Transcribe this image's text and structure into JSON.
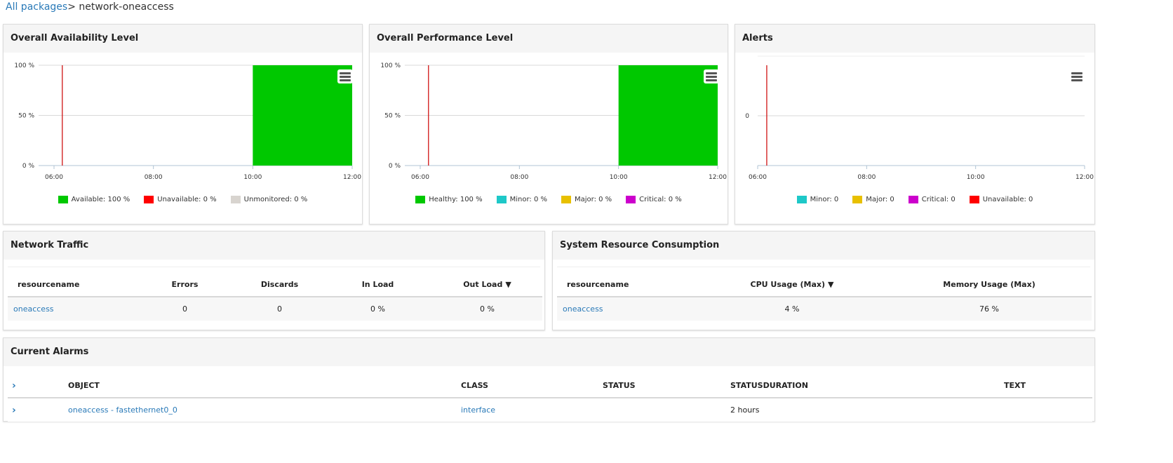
{
  "breadcrumb": {
    "root": "All packages",
    "separator": ">",
    "current": "network-oneaccess"
  },
  "panels": {
    "availability": {
      "title": "Overall Availability Level",
      "legend": [
        {
          "label": "Available: 100 %",
          "color": "#00c800"
        },
        {
          "label": "Unavailable: 0 %",
          "color": "#ff0000"
        },
        {
          "label": "Unmonitored: 0 %",
          "color": "#d8d4cf"
        }
      ]
    },
    "performance": {
      "title": "Overall Performance Level",
      "legend": [
        {
          "label": "Healthy: 100 %",
          "color": "#00c800"
        },
        {
          "label": "Minor: 0 %",
          "color": "#1ec8c8"
        },
        {
          "label": "Major: 0 %",
          "color": "#e8c000"
        },
        {
          "label": "Critical: 0 %",
          "color": "#cc00cc"
        }
      ]
    },
    "alerts": {
      "title": "Alerts",
      "legend": [
        {
          "label": "Minor: 0",
          "color": "#1ec8c8"
        },
        {
          "label": "Major: 0",
          "color": "#e8c000"
        },
        {
          "label": "Critical: 0",
          "color": "#cc00cc"
        },
        {
          "label": "Unavailable: 0",
          "color": "#ff0000"
        }
      ]
    },
    "network": {
      "title": "Network Traffic",
      "columns": [
        "resourcename",
        "Errors",
        "Discards",
        "In Load",
        "Out Load"
      ],
      "sort_indicator": "▼",
      "rows": [
        {
          "resourcename": "oneaccess",
          "errors": "0",
          "discards": "0",
          "in_load": "0 %",
          "out_load": "0 %"
        }
      ]
    },
    "system": {
      "title": "System Resource Consumption",
      "columns": [
        "resourcename",
        "CPU Usage (Max)",
        "Memory Usage (Max)"
      ],
      "sort_indicator": "▼",
      "rows": [
        {
          "resourcename": "oneaccess",
          "cpu": "4 %",
          "memory": "76 %"
        }
      ]
    },
    "alarms": {
      "title": "Current Alarms",
      "columns": [
        "OBJECT",
        "CLASS",
        "STATUS",
        "STATUSDURATION",
        "TEXT"
      ],
      "expand_icon": "›",
      "rows": [
        {
          "object": "oneaccess - fastethernet0_0",
          "class": "interface",
          "status": "",
          "duration": "2 hours",
          "text": ""
        }
      ]
    }
  },
  "chart_data": [
    {
      "type": "area",
      "title": "Overall Availability Level",
      "x_ticks": [
        "06:00",
        "08:00",
        "10:00",
        "12:00"
      ],
      "y_ticks": [
        "0 %",
        "50 %",
        "100 %"
      ],
      "ylim": [
        0,
        100
      ],
      "marker_time": "06:10",
      "series": [
        {
          "name": "Available",
          "color": "#00c800",
          "points": [
            [
              "10:00",
              100
            ],
            [
              "12:00",
              100
            ]
          ]
        }
      ]
    },
    {
      "type": "area",
      "title": "Overall Performance Level",
      "x_ticks": [
        "06:00",
        "08:00",
        "10:00",
        "12:00"
      ],
      "y_ticks": [
        "0 %",
        "50 %",
        "100 %"
      ],
      "ylim": [
        0,
        100
      ],
      "marker_time": "06:10",
      "series": [
        {
          "name": "Healthy",
          "color": "#00c800",
          "points": [
            [
              "10:00",
              100
            ],
            [
              "12:00",
              100
            ]
          ]
        }
      ]
    },
    {
      "type": "line",
      "title": "Alerts",
      "x_ticks": [
        "06:00",
        "08:00",
        "10:00",
        "12:00"
      ],
      "y_ticks": [
        "0"
      ],
      "marker_time": "06:10",
      "series": []
    }
  ]
}
